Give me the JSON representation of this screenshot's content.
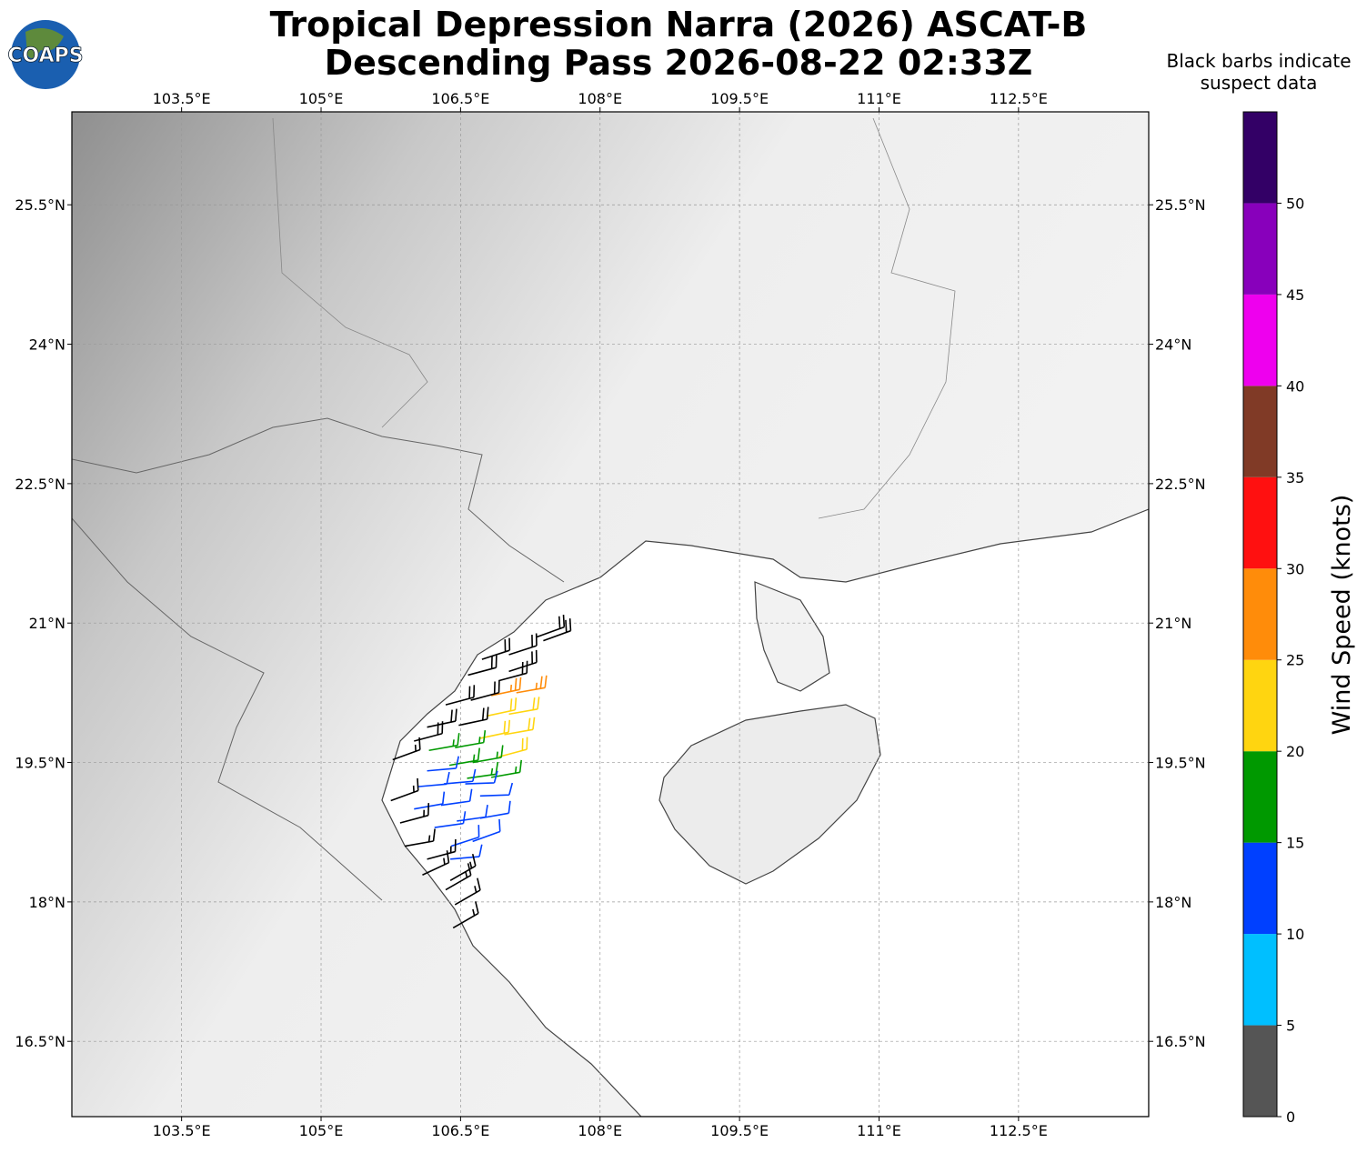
{
  "logo": "COAPS",
  "chart_data": {
    "type": "wind-barbs",
    "title": [
      "Tropical Depression Narra (2026) ASCAT-B",
      "Descending Pass 2026-08-22 02:33Z"
    ],
    "note": [
      "Black barbs indicate",
      "suspect data"
    ],
    "xlim": [
      102.32,
      113.9
    ],
    "ylim": [
      15.69,
      26.5
    ],
    "xticks": [
      {
        "value": 103.5,
        "label": "103.5°E"
      },
      {
        "value": 105,
        "label": "105°E"
      },
      {
        "value": 106.5,
        "label": "106.5°E"
      },
      {
        "value": 108,
        "label": "108°E"
      },
      {
        "value": 109.5,
        "label": "109.5°E"
      },
      {
        "value": 111,
        "label": "111°E"
      },
      {
        "value": 112.5,
        "label": "112.5°E"
      }
    ],
    "yticks": [
      {
        "value": 16.5,
        "label": "16.5°N"
      },
      {
        "value": 18,
        "label": "18°N"
      },
      {
        "value": 19.5,
        "label": "19.5°N"
      },
      {
        "value": 21,
        "label": "21°N"
      },
      {
        "value": 22.5,
        "label": "22.5°N"
      },
      {
        "value": 24,
        "label": "24°N"
      },
      {
        "value": 25.5,
        "label": "25.5°N"
      }
    ],
    "grid": true,
    "suspect_color": "#000000",
    "colorbar": {
      "label": "Wind Speed (knots)",
      "lim": [
        0,
        55
      ],
      "ticks": [
        0,
        5,
        10,
        15,
        20,
        25,
        30,
        35,
        40,
        45,
        50
      ],
      "colors": [
        "#555555",
        "#00bfff",
        "#0040ff",
        "#009900",
        "#ffd510",
        "#ff8c0a",
        "#ff1010",
        "#803a26",
        "#ee00ee",
        "#8800bb",
        "#330066"
      ]
    },
    "barbs": [
      {
        "lon": 107.32,
        "lat": 20.85,
        "speed": 20,
        "direction": 70,
        "suspect": true
      },
      {
        "lon": 107.39,
        "lat": 20.81,
        "speed": 20,
        "direction": 70,
        "suspect": true
      },
      {
        "lon": 107.02,
        "lat": 20.66,
        "speed": 20,
        "direction": 72,
        "suspect": true
      },
      {
        "lon": 106.73,
        "lat": 20.61,
        "speed": 20,
        "direction": 72,
        "suspect": true
      },
      {
        "lon": 107.02,
        "lat": 20.48,
        "speed": 20,
        "direction": 72,
        "suspect": true
      },
      {
        "lon": 106.58,
        "lat": 20.44,
        "speed": 20,
        "direction": 75,
        "suspect": true
      },
      {
        "lon": 106.91,
        "lat": 20.38,
        "speed": 20,
        "direction": 75,
        "suspect": true
      },
      {
        "lon": 106.83,
        "lat": 20.22,
        "speed": 27,
        "direction": 78,
        "suspect": false
      },
      {
        "lon": 107.1,
        "lat": 20.25,
        "speed": 27,
        "direction": 80,
        "suspect": false
      },
      {
        "lon": 106.34,
        "lat": 20.12,
        "speed": 20,
        "direction": 75,
        "suspect": true
      },
      {
        "lon": 106.61,
        "lat": 20.17,
        "speed": 20,
        "direction": 75,
        "suspect": true
      },
      {
        "lon": 106.78,
        "lat": 20.0,
        "speed": 22,
        "direction": 78,
        "suspect": false
      },
      {
        "lon": 107.02,
        "lat": 20.02,
        "speed": 22,
        "direction": 80,
        "suspect": false
      },
      {
        "lon": 106.14,
        "lat": 19.88,
        "speed": 20,
        "direction": 78,
        "suspect": true
      },
      {
        "lon": 106.48,
        "lat": 19.9,
        "speed": 20,
        "direction": 78,
        "suspect": true
      },
      {
        "lon": 106.71,
        "lat": 19.76,
        "speed": 22,
        "direction": 78,
        "suspect": false
      },
      {
        "lon": 106.97,
        "lat": 19.8,
        "speed": 22,
        "direction": 80,
        "suspect": false
      },
      {
        "lon": 106.0,
        "lat": 19.73,
        "speed": 20,
        "direction": 75,
        "suspect": true
      },
      {
        "lon": 106.16,
        "lat": 19.63,
        "speed": 17,
        "direction": 80,
        "suspect": false
      },
      {
        "lon": 106.44,
        "lat": 19.66,
        "speed": 17,
        "direction": 80,
        "suspect": false
      },
      {
        "lon": 106.91,
        "lat": 19.56,
        "speed": 22,
        "direction": 75,
        "suspect": false
      },
      {
        "lon": 105.77,
        "lat": 19.53,
        "speed": 15,
        "direction": 70,
        "suspect": true
      },
      {
        "lon": 106.38,
        "lat": 19.47,
        "speed": 17,
        "direction": 80,
        "suspect": false
      },
      {
        "lon": 106.63,
        "lat": 19.5,
        "speed": 17,
        "direction": 80,
        "suspect": false
      },
      {
        "lon": 106.14,
        "lat": 19.41,
        "speed": 12,
        "direction": 85,
        "suspect": false
      },
      {
        "lon": 106.57,
        "lat": 19.33,
        "speed": 17,
        "direction": 82,
        "suspect": false
      },
      {
        "lon": 106.83,
        "lat": 19.34,
        "speed": 17,
        "direction": 80,
        "suspect": false
      },
      {
        "lon": 106.04,
        "lat": 19.24,
        "speed": 12,
        "direction": 85,
        "suspect": false
      },
      {
        "lon": 106.32,
        "lat": 19.27,
        "speed": 12,
        "direction": 85,
        "suspect": false
      },
      {
        "lon": 106.55,
        "lat": 19.27,
        "speed": 12,
        "direction": 88,
        "suspect": false
      },
      {
        "lon": 105.75,
        "lat": 19.09,
        "speed": 15,
        "direction": 70,
        "suspect": true
      },
      {
        "lon": 106.0,
        "lat": 19.0,
        "speed": 12,
        "direction": 80,
        "suspect": false
      },
      {
        "lon": 106.29,
        "lat": 19.04,
        "speed": 12,
        "direction": 82,
        "suspect": false
      },
      {
        "lon": 106.71,
        "lat": 19.14,
        "speed": 12,
        "direction": 88,
        "suspect": false
      },
      {
        "lon": 105.85,
        "lat": 18.85,
        "speed": 15,
        "direction": 75,
        "suspect": true
      },
      {
        "lon": 106.22,
        "lat": 18.8,
        "speed": 12,
        "direction": 82,
        "suspect": false
      },
      {
        "lon": 106.46,
        "lat": 18.87,
        "speed": 12,
        "direction": 82,
        "suspect": false
      },
      {
        "lon": 106.71,
        "lat": 18.9,
        "speed": 12,
        "direction": 80,
        "suspect": false
      },
      {
        "lon": 105.9,
        "lat": 18.6,
        "speed": 15,
        "direction": 80,
        "suspect": true
      },
      {
        "lon": 106.4,
        "lat": 18.6,
        "speed": 12,
        "direction": 72,
        "suspect": false
      },
      {
        "lon": 106.63,
        "lat": 18.65,
        "speed": 12,
        "direction": 70,
        "suspect": false
      },
      {
        "lon": 106.14,
        "lat": 18.46,
        "speed": 15,
        "direction": 75,
        "suspect": true
      },
      {
        "lon": 106.39,
        "lat": 18.46,
        "speed": 12,
        "direction": 85,
        "suspect": false
      },
      {
        "lon": 106.09,
        "lat": 18.29,
        "speed": 15,
        "direction": 65,
        "suspect": true
      },
      {
        "lon": 106.39,
        "lat": 18.23,
        "speed": 15,
        "direction": 60,
        "suspect": true
      },
      {
        "lon": 106.34,
        "lat": 18.13,
        "speed": 15,
        "direction": 60,
        "suspect": true
      },
      {
        "lon": 106.44,
        "lat": 17.97,
        "speed": 15,
        "direction": 60,
        "suspect": true
      },
      {
        "lon": 106.42,
        "lat": 17.72,
        "speed": 15,
        "direction": 60,
        "suspect": true
      }
    ]
  }
}
